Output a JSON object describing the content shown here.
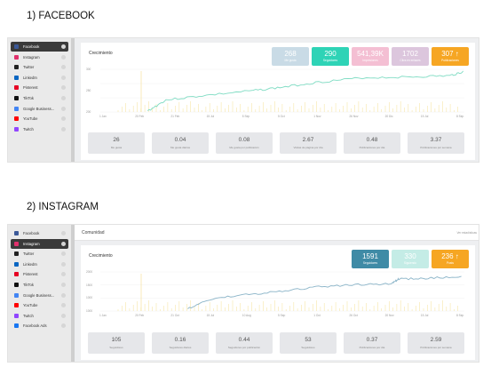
{
  "sections": [
    {
      "heading": "1)  FACEBOOK",
      "sidebar": [
        "Facebook",
        "Instagram",
        "Twitter",
        "LinkedIn",
        "Pinterest",
        "TikTok",
        "Google Business...",
        "YouTube",
        "Twitch"
      ],
      "active": 0,
      "chart_title": "Crecimiento",
      "stats": [
        {
          "value": "268",
          "label": "Me gusta",
          "color": "#c9dbe6"
        },
        {
          "value": "290",
          "label": "Seguidores",
          "color": "#2ed3b6"
        },
        {
          "value": "541,39K",
          "label": "Impresiones",
          "color": "#f4bfd3"
        },
        {
          "value": "1702",
          "label": "Clics en enlaces",
          "color": "#dcc6dd"
        },
        {
          "value": "307 ↑",
          "label": "Publicaciones",
          "color": "#f6a623"
        }
      ],
      "yaxis": [
        "300",
        "250",
        "200"
      ],
      "xaxis": [
        "1 Jan",
        "20 Feb",
        "21 Feb",
        "15 Jul",
        "5 Sep",
        "5 Oct",
        "1 Nov",
        "26 Nov",
        "20 Dic",
        "15 Jul",
        "8 Sep"
      ],
      "line_color": "#7fdcc3",
      "metrics": [
        {
          "value": "26",
          "label": "Me gusta"
        },
        {
          "value": "0.04",
          "label": "Me gusta diarios"
        },
        {
          "value": "0.08",
          "label": "Me gusta por publicación"
        },
        {
          "value": "2.67",
          "label": "Visitas de página por día"
        },
        {
          "value": "0.48",
          "label": "Publicaciones por día"
        },
        {
          "value": "3.37",
          "label": "Publicaciones por semana"
        }
      ]
    },
    {
      "heading": "2)  INSTAGRAM",
      "header": "Comunidad",
      "header_link": "Ver estadísticas",
      "sidebar": [
        "Facebook",
        "Instagram",
        "Twitter",
        "LinkedIn",
        "Pinterest",
        "TikTok",
        "Google Business...",
        "YouTube",
        "Twitch",
        "Facebook Ads"
      ],
      "active": 1,
      "chart_title": "Crecimiento",
      "stats": [
        {
          "value": "1591",
          "label": "Seguidores",
          "color": "#3f8ba6"
        },
        {
          "value": "330",
          "label": "Siguiendo",
          "color": "#c4ece6"
        },
        {
          "value": "236 ↑",
          "label": "Posts",
          "color": "#f6a623"
        }
      ],
      "yaxis": [
        "2000",
        "1500",
        "1000",
        "1000"
      ],
      "xaxis": [
        "1 Jan",
        "20 Feb",
        "21 Oct",
        "15 Jul",
        "10 Aug",
        "5 Sep",
        "1 Oct",
        "26 Oct",
        "20 Nov",
        "15 Jul",
        "8 Sep"
      ],
      "line_color": "#8ab4c8",
      "metrics": [
        {
          "value": "105",
          "label": "Seguidores"
        },
        {
          "value": "0.16",
          "label": "Seguidores diarios"
        },
        {
          "value": "0.44",
          "label": "Seguidores por publicación"
        },
        {
          "value": "53",
          "label": "Seguidores"
        },
        {
          "value": "0.37",
          "label": "Publicaciones por día"
        },
        {
          "value": "2.59",
          "label": "Publicaciones por semana"
        }
      ]
    }
  ]
}
